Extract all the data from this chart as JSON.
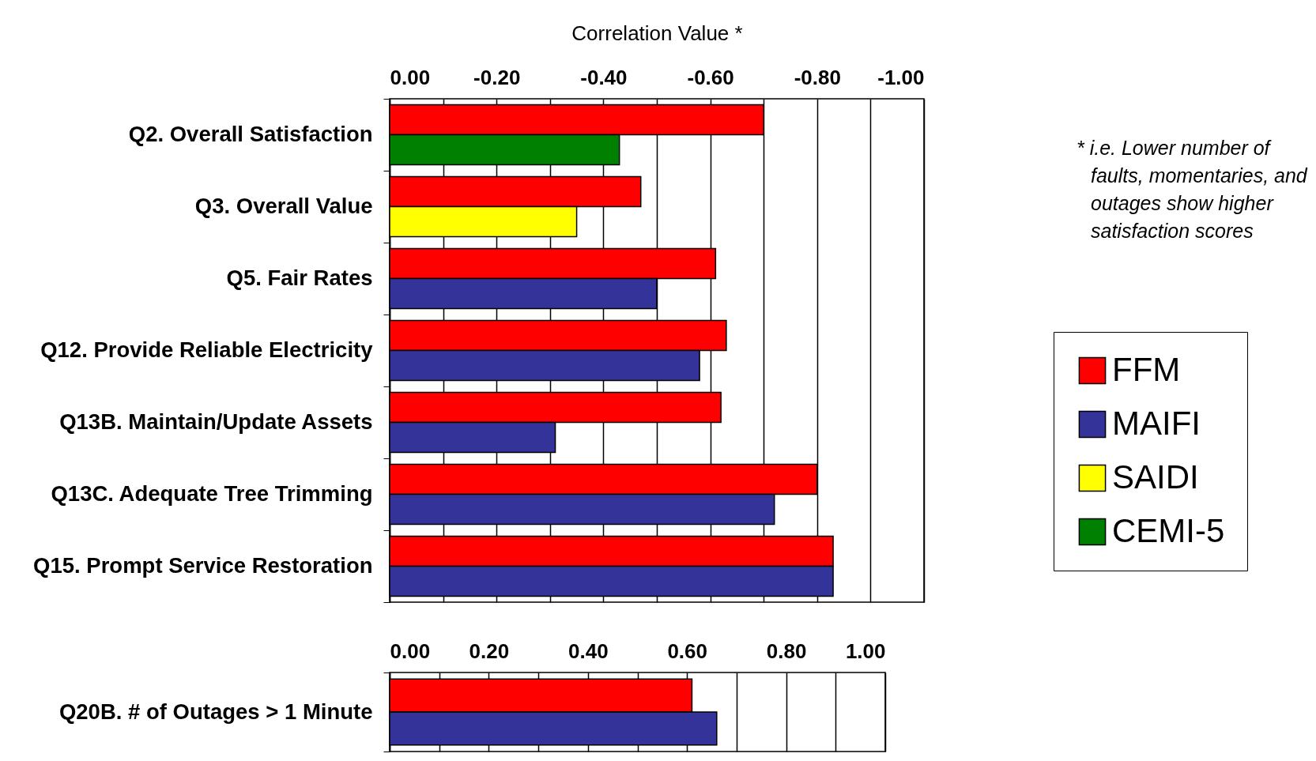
{
  "chart_data": [
    {
      "type": "bar",
      "orientation": "horizontal",
      "xlabel": "Correlation Value *",
      "categories": [
        "Q2. Overall Satisfaction",
        "Q3. Overall Value",
        "Q5. Fair Rates",
        "Q12. Provide Reliable Electricity",
        "Q13B. Maintain/Update Assets",
        "Q13C. Adequate Tree Trimming",
        "Q15. Prompt Service Restoration"
      ],
      "series": [
        {
          "name": "FFM",
          "color": "#ff0000",
          "values": [
            -0.7,
            -0.47,
            -0.61,
            -0.63,
            -0.62,
            -0.8,
            -0.83
          ]
        },
        {
          "name": "MAIFI",
          "color": "#333399",
          "values": [
            null,
            null,
            -0.5,
            -0.58,
            -0.31,
            -0.72,
            -0.83
          ]
        },
        {
          "name": "SAIDI",
          "color": "#ffff00",
          "values": [
            null,
            -0.35,
            null,
            null,
            null,
            null,
            null
          ]
        },
        {
          "name": "CEMI-5",
          "color": "#008000",
          "values": [
            -0.43,
            null,
            null,
            null,
            null,
            null,
            null
          ]
        }
      ],
      "xlim": [
        0,
        -1
      ],
      "xticks": [
        {
          "value": 0,
          "label": "0.00"
        },
        {
          "value": -0.1,
          "label": null
        },
        {
          "value": -0.2,
          "label": "-0.20"
        },
        {
          "value": -0.3,
          "label": null
        },
        {
          "value": -0.4,
          "label": "-0.40"
        },
        {
          "value": -0.5,
          "label": null
        },
        {
          "value": -0.6,
          "label": "-0.60"
        },
        {
          "value": -0.7,
          "label": null
        },
        {
          "value": -0.8,
          "label": "-0.80"
        },
        {
          "value": -0.9,
          "label": null
        },
        {
          "value": -1,
          "label": "-1.00"
        }
      ],
      "grid": "x",
      "legend": "right",
      "annotations": [
        "* i.e. Lower number of faults, momentaries, and outages show higher satisfaction scores"
      ]
    },
    {
      "type": "bar",
      "orientation": "horizontal",
      "categories": [
        "Q20B. # of Outages > 1 Minute"
      ],
      "series": [
        {
          "color": "#ff0000",
          "values": [
            0.61
          ]
        },
        {
          "color": "#333399",
          "values": [
            0.66
          ]
        }
      ],
      "xlim": [
        0,
        1
      ],
      "xticks": [
        {
          "value": 0,
          "label": "0.00"
        },
        {
          "value": 0.1,
          "label": null
        },
        {
          "value": 0.2,
          "label": "0.20"
        },
        {
          "value": 0.3,
          "label": null
        },
        {
          "value": 0.4,
          "label": "0.40"
        },
        {
          "value": 0.5,
          "label": null
        },
        {
          "value": 0.6,
          "label": "0.60"
        },
        {
          "value": 0.7,
          "label": null
        },
        {
          "value": 0.8,
          "label": "0.80"
        },
        {
          "value": 0.9,
          "label": null
        },
        {
          "value": 1,
          "label": "1.00"
        }
      ],
      "grid": "x",
      "legend": false
    }
  ]
}
